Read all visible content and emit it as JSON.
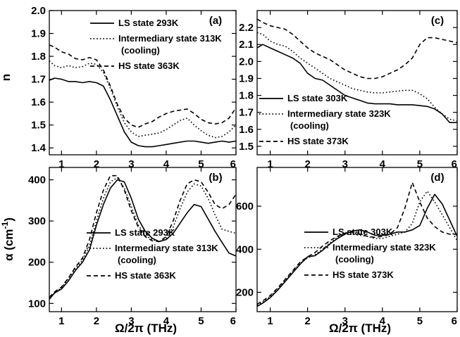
{
  "x_axis_label": "Ω/2π (THz)",
  "chart_data": [
    {
      "panel": "(a)",
      "type": "line",
      "title": "",
      "xlabel": "",
      "ylabel": "n",
      "xlim": [
        0.65,
        6.0
      ],
      "ylim": [
        1.37,
        2.0
      ],
      "x_ticks": [
        "1",
        "2",
        "3",
        "4",
        "5",
        "6"
      ],
      "y_ticks": [
        "1.4",
        "1.5",
        "1.6",
        "1.7",
        "1.8",
        "1.9",
        "2.0"
      ],
      "legend_position": "top-right",
      "series": [
        {
          "name": "LS state 293K",
          "style": "solid",
          "x": [
            0.65,
            0.8,
            1.0,
            1.2,
            1.4,
            1.6,
            1.8,
            2.0,
            2.2,
            2.4,
            2.6,
            2.8,
            3.0,
            3.2,
            3.4,
            3.6,
            3.8,
            4.0,
            4.2,
            4.4,
            4.6,
            4.8,
            5.0,
            5.2,
            5.4,
            5.6,
            5.8,
            6.0
          ],
          "y": [
            1.695,
            1.705,
            1.7,
            1.69,
            1.69,
            1.685,
            1.69,
            1.685,
            1.67,
            1.61,
            1.54,
            1.47,
            1.425,
            1.41,
            1.405,
            1.405,
            1.41,
            1.415,
            1.42,
            1.425,
            1.43,
            1.43,
            1.425,
            1.42,
            1.425,
            1.43,
            1.425,
            1.43
          ]
        },
        {
          "name": "Intermediary state 313K",
          "subtitle": "(cooling)",
          "style": "dotted",
          "x": [
            0.65,
            0.8,
            1.0,
            1.2,
            1.4,
            1.6,
            1.8,
            2.0,
            2.2,
            2.4,
            2.6,
            2.8,
            3.0,
            3.2,
            3.4,
            3.6,
            3.8,
            4.0,
            4.2,
            4.4,
            4.6,
            4.8,
            5.0,
            5.2,
            5.4,
            5.6,
            5.8,
            6.0
          ],
          "y": [
            1.78,
            1.76,
            1.75,
            1.76,
            1.75,
            1.755,
            1.77,
            1.765,
            1.73,
            1.66,
            1.58,
            1.51,
            1.47,
            1.45,
            1.455,
            1.46,
            1.465,
            1.48,
            1.5,
            1.52,
            1.53,
            1.5,
            1.475,
            1.455,
            1.445,
            1.45,
            1.47,
            1.5
          ]
        },
        {
          "name": "HS state 363K",
          "style": "dashed",
          "x": [
            0.65,
            0.8,
            1.0,
            1.2,
            1.4,
            1.6,
            1.8,
            2.0,
            2.2,
            2.4,
            2.6,
            2.8,
            3.0,
            3.2,
            3.4,
            3.6,
            3.8,
            4.0,
            4.2,
            4.4,
            4.6,
            4.8,
            5.0,
            5.2,
            5.4,
            5.6,
            5.8,
            6.0
          ],
          "y": [
            1.85,
            1.84,
            1.82,
            1.81,
            1.79,
            1.785,
            1.795,
            1.785,
            1.74,
            1.67,
            1.59,
            1.53,
            1.5,
            1.49,
            1.505,
            1.515,
            1.535,
            1.55,
            1.56,
            1.565,
            1.57,
            1.55,
            1.525,
            1.51,
            1.505,
            1.51,
            1.53,
            1.575
          ]
        }
      ]
    },
    {
      "panel": "(b)",
      "type": "line",
      "title": "",
      "xlabel": "Ω/2π (THz)",
      "ylabel": "α (cm-1)",
      "xlim": [
        0.65,
        6.0
      ],
      "ylim": [
        80,
        430
      ],
      "x_ticks": [
        "1",
        "2",
        "3",
        "4",
        "5",
        "6"
      ],
      "y_ticks": [
        "100",
        "200",
        "300",
        "400"
      ],
      "legend_position": "bottom-right",
      "series": [
        {
          "name": "LS state 293K",
          "style": "solid",
          "x": [
            0.65,
            0.8,
            1.0,
            1.2,
            1.4,
            1.6,
            1.8,
            2.0,
            2.2,
            2.4,
            2.6,
            2.8,
            3.0,
            3.2,
            3.4,
            3.6,
            3.8,
            4.0,
            4.2,
            4.4,
            4.6,
            4.8,
            5.0,
            5.2,
            5.4,
            5.6,
            5.8,
            6.0
          ],
          "y": [
            110,
            125,
            135,
            155,
            180,
            200,
            230,
            290,
            340,
            380,
            400,
            395,
            355,
            305,
            275,
            258,
            250,
            255,
            270,
            295,
            320,
            340,
            335,
            305,
            275,
            248,
            222,
            215
          ]
        },
        {
          "name": "Intermediary state 313K",
          "subtitle": "(cooling)",
          "style": "dotted",
          "x": [
            0.65,
            0.8,
            1.0,
            1.2,
            1.4,
            1.6,
            1.8,
            2.0,
            2.2,
            2.4,
            2.6,
            2.8,
            3.0,
            3.2,
            3.4,
            3.6,
            3.8,
            4.0,
            4.2,
            4.4,
            4.6,
            4.8,
            5.0,
            5.2,
            5.4,
            5.6,
            5.8,
            6.0
          ],
          "y": [
            112,
            126,
            138,
            160,
            185,
            205,
            240,
            300,
            355,
            395,
            405,
            380,
            335,
            290,
            265,
            255,
            250,
            258,
            285,
            330,
            370,
            390,
            385,
            355,
            315,
            280,
            275,
            270
          ]
        },
        {
          "name": "HS state 363K",
          "style": "dashed",
          "x": [
            0.65,
            0.8,
            1.0,
            1.2,
            1.4,
            1.6,
            1.8,
            2.0,
            2.2,
            2.4,
            2.6,
            2.8,
            3.0,
            3.2,
            3.4,
            3.6,
            3.8,
            4.0,
            4.2,
            4.4,
            4.6,
            4.8,
            5.0,
            5.2,
            5.4,
            5.6,
            5.8,
            6.0
          ],
          "y": [
            115,
            128,
            140,
            162,
            188,
            210,
            255,
            320,
            375,
            410,
            410,
            375,
            325,
            285,
            262,
            252,
            250,
            262,
            300,
            350,
            390,
            400,
            395,
            370,
            340,
            330,
            340,
            365
          ]
        }
      ]
    },
    {
      "panel": "(c)",
      "type": "line",
      "title": "",
      "xlabel": "",
      "ylabel": "",
      "xlim": [
        0.65,
        6.0
      ],
      "ylim": [
        1.45,
        2.3
      ],
      "x_ticks": [
        "1",
        "2",
        "3",
        "4",
        "5",
        "6"
      ],
      "y_ticks": [
        "1.5",
        "1.6",
        "1.7",
        "1.8",
        "1.9",
        "2.0",
        "2.1",
        "2.2"
      ],
      "legend_position": "bottom-left",
      "series": [
        {
          "name": "LS state 303K",
          "style": "solid",
          "x": [
            0.65,
            0.8,
            1.0,
            1.2,
            1.4,
            1.6,
            1.8,
            2.0,
            2.2,
            2.4,
            2.6,
            2.8,
            3.0,
            3.2,
            3.4,
            3.6,
            3.8,
            4.0,
            4.2,
            4.4,
            4.6,
            4.8,
            5.0,
            5.2,
            5.4,
            5.6,
            5.8,
            6.0
          ],
          "y": [
            2.08,
            2.1,
            2.08,
            2.06,
            2.04,
            2.02,
            1.99,
            1.93,
            1.9,
            1.89,
            1.86,
            1.83,
            1.8,
            1.785,
            1.77,
            1.755,
            1.75,
            1.75,
            1.75,
            1.745,
            1.745,
            1.745,
            1.74,
            1.735,
            1.72,
            1.69,
            1.64,
            1.64
          ]
        },
        {
          "name": "Intermediary state 323K",
          "subtitle": "(cooling)",
          "style": "dotted",
          "x": [
            0.65,
            0.8,
            1.0,
            1.2,
            1.4,
            1.6,
            1.8,
            2.0,
            2.2,
            2.4,
            2.6,
            2.8,
            3.0,
            3.2,
            3.4,
            3.6,
            3.8,
            4.0,
            4.2,
            4.4,
            4.6,
            4.8,
            5.0,
            5.2,
            5.4,
            5.6,
            5.8,
            6.0
          ],
          "y": [
            2.17,
            2.16,
            2.12,
            2.1,
            2.09,
            2.06,
            2.02,
            1.99,
            1.96,
            1.93,
            1.9,
            1.88,
            1.86,
            1.84,
            1.83,
            1.82,
            1.815,
            1.815,
            1.82,
            1.825,
            1.83,
            1.83,
            1.81,
            1.78,
            1.73,
            1.69,
            1.66,
            1.65
          ]
        },
        {
          "name": "HS state 373K",
          "style": "dashed",
          "x": [
            0.65,
            0.8,
            1.0,
            1.2,
            1.4,
            1.6,
            1.8,
            2.0,
            2.2,
            2.4,
            2.6,
            2.8,
            3.0,
            3.2,
            3.4,
            3.6,
            3.8,
            4.0,
            4.2,
            4.4,
            4.6,
            4.8,
            5.0,
            5.2,
            5.4,
            5.6,
            5.8,
            6.0
          ],
          "y": [
            2.25,
            2.23,
            2.21,
            2.2,
            2.19,
            2.16,
            2.12,
            2.08,
            2.05,
            2.03,
            2.01,
            1.98,
            1.95,
            1.93,
            1.91,
            1.9,
            1.9,
            1.91,
            1.93,
            1.95,
            1.98,
            2.02,
            2.1,
            2.14,
            2.14,
            2.13,
            2.12,
            2.11
          ]
        }
      ]
    },
    {
      "panel": "(d)",
      "type": "line",
      "title": "",
      "xlabel": "Ω/2π (THz)",
      "ylabel": "",
      "xlim": [
        0.65,
        6.0
      ],
      "ylim": [
        110,
        780
      ],
      "x_ticks": [
        "1",
        "2",
        "3",
        "4",
        "5",
        "6"
      ],
      "y_ticks": [
        "200",
        "400",
        "600"
      ],
      "legend_position": "bottom-right",
      "series": [
        {
          "name": "LS state 303K",
          "style": "solid",
          "x": [
            0.65,
            0.8,
            1.0,
            1.2,
            1.4,
            1.6,
            1.8,
            2.0,
            2.2,
            2.4,
            2.6,
            2.8,
            3.0,
            3.2,
            3.4,
            3.6,
            3.8,
            4.0,
            4.2,
            4.4,
            4.6,
            4.8,
            5.0,
            5.2,
            5.4,
            5.6,
            5.8,
            6.0
          ],
          "y": [
            135,
            150,
            175,
            210,
            250,
            290,
            330,
            365,
            370,
            395,
            425,
            450,
            470,
            485,
            490,
            480,
            465,
            465,
            470,
            480,
            480,
            490,
            510,
            590,
            655,
            610,
            535,
            460
          ]
        },
        {
          "name": "Intermediary state 323K",
          "subtitle": "(cooling)",
          "style": "dotted",
          "x": [
            0.65,
            0.8,
            1.0,
            1.2,
            1.4,
            1.6,
            1.8,
            2.0,
            2.2,
            2.4,
            2.6,
            2.8,
            3.0,
            3.2,
            3.4,
            3.6,
            3.8,
            4.0,
            4.2,
            4.4,
            4.6,
            4.8,
            5.0,
            5.2,
            5.4,
            5.6,
            5.8,
            6.0
          ],
          "y": [
            140,
            155,
            180,
            215,
            255,
            295,
            335,
            360,
            375,
            400,
            430,
            455,
            470,
            470,
            465,
            460,
            450,
            450,
            460,
            470,
            480,
            520,
            620,
            670,
            620,
            560,
            500,
            440
          ]
        },
        {
          "name": "HS state 373K",
          "style": "dashed",
          "x": [
            0.65,
            0.8,
            1.0,
            1.2,
            1.4,
            1.6,
            1.8,
            2.0,
            2.2,
            2.4,
            2.6,
            2.8,
            3.0,
            3.2,
            3.4,
            3.6,
            3.8,
            4.0,
            4.2,
            4.4,
            4.6,
            4.8,
            5.0,
            5.2,
            5.4,
            5.6,
            5.8,
            6.0
          ],
          "y": [
            145,
            160,
            185,
            220,
            260,
            300,
            340,
            365,
            385,
            415,
            440,
            460,
            475,
            480,
            470,
            460,
            455,
            460,
            470,
            500,
            590,
            710,
            620,
            545,
            505,
            480,
            470,
            470
          ]
        }
      ]
    }
  ]
}
